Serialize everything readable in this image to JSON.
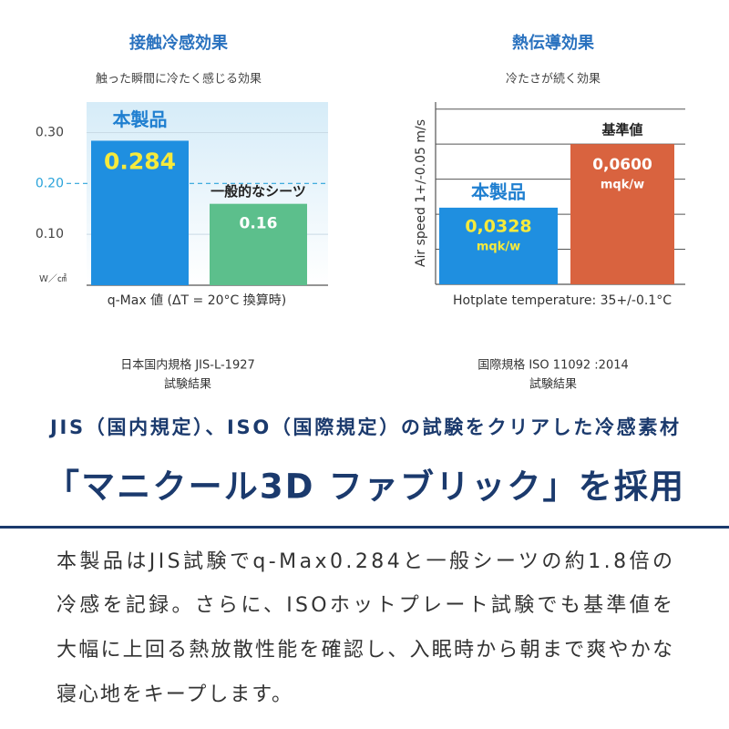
{
  "chart_data": [
    {
      "type": "bar",
      "title": "接触冷感効果",
      "subtitle": "触った瞬間に冷たく感じる効果",
      "categories": [
        "本製品",
        "一般的なシーツ"
      ],
      "values": [
        0.284,
        0.16
      ],
      "value_labels": [
        "0.284",
        "0.16"
      ],
      "colors": [
        "#1f8fe0",
        "#5cbf8c"
      ],
      "ylim": [
        0,
        0.36
      ],
      "yticks": [
        {
          "value": 0.1,
          "label": "0.10"
        },
        {
          "value": 0.2,
          "label": "0.20"
        },
        {
          "value": 0.3,
          "label": "0.30"
        }
      ],
      "reference_line": 0.2,
      "y_unit": "W／㎠",
      "xlabel": "q-Max 値 (ΔT = 20°C 換算時)",
      "footnote": [
        "日本国内規格 JIS-L-1927",
        "試験結果"
      ]
    },
    {
      "type": "bar",
      "title": "熱伝導効果",
      "subtitle": "冷たさが続く効果",
      "categories": [
        "本製品",
        "基準値"
      ],
      "values": [
        0.0328,
        0.06
      ],
      "value_labels": [
        "0,0328",
        "0,0600"
      ],
      "value_unit": "mqk/w",
      "colors": [
        "#1f8fe0",
        "#d9633f"
      ],
      "ylim": [
        0,
        0.078
      ],
      "yticks": [
        0.015,
        0.03,
        0.045,
        0.06,
        0.075
      ],
      "ylabel": "Air speed 1+/-0.05 m/s",
      "xlabel": "Hotplate temperature: 35+/-0.1°C",
      "footnote": [
        "国際規格 ISO 11092 :2014",
        "試験結果"
      ]
    }
  ],
  "headline": "JIS（国内規定）、ISO（国際規定）の試験をクリアした冷感素材",
  "product_line": "「マニクール3D ファブリック」を採用",
  "body": [
    "本製品はJIS試験でq-Max0.284と一般シーツの約1.8倍の",
    "冷感を記録。さらに、ISOホットプレート試験でも基準値を",
    "大幅に上回る熱放散性能を確認し、入眠時から朝まで爽やかな",
    "寝心地をキープします。"
  ]
}
